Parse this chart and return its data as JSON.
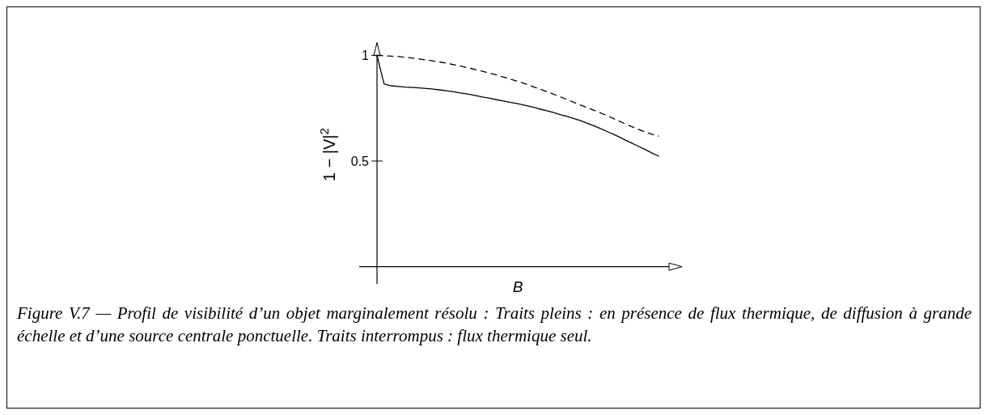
{
  "chart_data": {
    "type": "line",
    "xlabel": "B",
    "ylabel": "1 − |V|$^{2}$",
    "annotations": [
      "Figure V.7 — Profil de visibilité d’un objet marginalement résolu : Traits pleins : en présence de flux thermique, de diffusion à grande échelle et d’une source centrale ponctuelle. Traits interrompus : flux thermique seul."
    ],
    "categories": [
      null,
      null,
      null,
      null,
      null,
      null,
      null,
      null,
      null,
      null,
      null,
      null,
      null,
      null,
      null,
      null,
      null,
      null,
      null,
      null,
      null,
      null,
      null,
      null,
      null,
      null,
      null,
      null,
      null,
      null,
      null,
      null,
      null,
      null,
      null,
      null,
      null,
      null,
      null,
      null,
      null
    ],
    "series": [
      {
        "color": "#000000",
        "line_style": "solid",
        "values": [
          1.0,
          0.865,
          0.856,
          0.853,
          0.85,
          0.848,
          0.846,
          0.843,
          0.84,
          0.836,
          0.832,
          0.827,
          0.821,
          0.816,
          0.81,
          0.803,
          0.797,
          0.79,
          0.784,
          0.777,
          0.771,
          0.764,
          0.756,
          0.747,
          0.739,
          0.73,
          0.72,
          0.711,
          0.701,
          0.69,
          0.677,
          0.664,
          0.65,
          0.635,
          0.62,
          0.604,
          0.588,
          0.572,
          0.556,
          0.539,
          0.523
        ]
      },
      {
        "color": "#000000",
        "line_style": "dashed",
        "values": [
          1.0,
          0.998,
          0.996,
          0.994,
          0.991,
          0.987,
          0.983,
          0.978,
          0.973,
          0.968,
          0.962,
          0.955,
          0.948,
          0.941,
          0.932,
          0.924,
          0.916,
          0.907,
          0.897,
          0.887,
          0.877,
          0.866,
          0.854,
          0.842,
          0.83,
          0.817,
          0.804,
          0.791,
          0.777,
          0.764,
          0.751,
          0.738,
          0.724,
          0.71,
          0.695,
          0.68,
          0.665,
          0.652,
          0.639,
          0.627,
          0.618
        ]
      }
    ],
    "ylim": [
      0,
      1.06
    ],
    "yticks": [
      0.5,
      1
    ],
    "tick_labels": "y",
    "marker": "none"
  }
}
